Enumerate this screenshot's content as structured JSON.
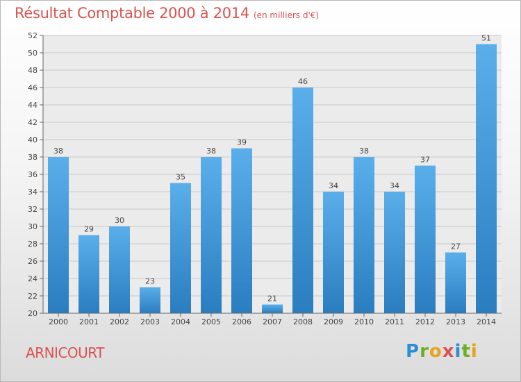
{
  "chart_data": {
    "type": "bar",
    "title": "Résultat Comptable 2000 à 2014",
    "unit": "(en milliers d'€)",
    "categories": [
      "2000",
      "2001",
      "2002",
      "2003",
      "2004",
      "2005",
      "2006",
      "2007",
      "2008",
      "2009",
      "2010",
      "2011",
      "2012",
      "2013",
      "2014"
    ],
    "values": [
      38,
      29,
      30,
      23,
      35,
      38,
      39,
      21,
      46,
      34,
      38,
      34,
      37,
      27,
      51
    ],
    "ylim": [
      20,
      52
    ],
    "yticks": [
      20,
      22,
      24,
      26,
      28,
      30,
      32,
      34,
      36,
      38,
      40,
      42,
      44,
      46,
      48,
      50,
      52
    ],
    "grid": true,
    "xlabel": "",
    "ylabel": ""
  },
  "commune": "ARNICOURT",
  "logo": {
    "letters": [
      "P",
      "r",
      "o",
      "x",
      "i",
      "t",
      "i"
    ],
    "colors": [
      "#2b8fd6",
      "#6ab023",
      "#e8a31b",
      "#d9534f",
      "#2b8fd6",
      "#6ab023",
      "#e8a31b"
    ]
  },
  "colors": {
    "bar_top": "#5aaeea",
    "bar_bottom": "#2a7ec0",
    "title": "#d9534f",
    "grid": "#c8c8c8",
    "axis": "#666666"
  }
}
